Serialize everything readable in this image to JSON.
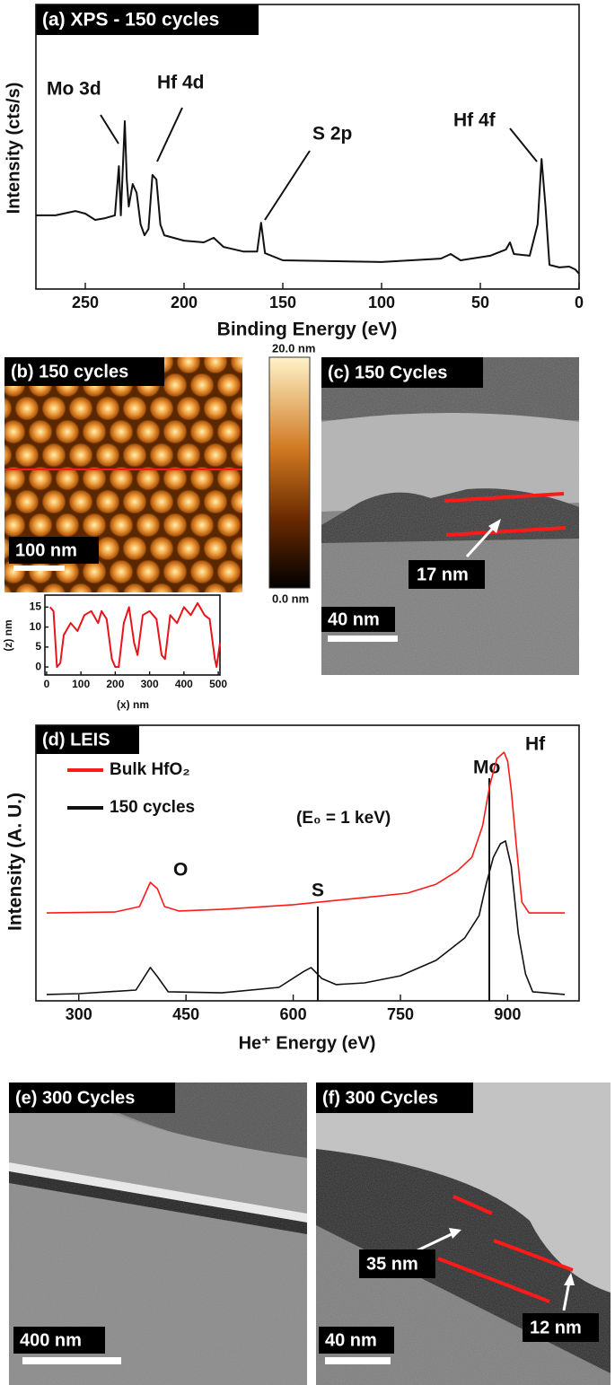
{
  "chart_data": [
    {
      "type": "line",
      "title": "(a) XPS - 150 cycles",
      "x_label": "Binding Energy (eV)",
      "y_label": "Intensity (cts/s)",
      "xlim": [
        275,
        0
      ],
      "ylim": [
        0,
        100
      ],
      "xticks": [
        250,
        200,
        150,
        100,
        50,
        0
      ],
      "annotations": [
        "Mo 3d",
        "Hf 4d",
        "S 2p",
        "Hf 4f"
      ],
      "series": [
        {
          "color": "#111111",
          "x": [
            275,
            265,
            255,
            250,
            245,
            240,
            235,
            233,
            232,
            230,
            229,
            228,
            226,
            224,
            222,
            220,
            218,
            216,
            214,
            212,
            210,
            200,
            190,
            185,
            180,
            170,
            163,
            161,
            159,
            150,
            100,
            70,
            65,
            60,
            45,
            37,
            35,
            33,
            25,
            21,
            19,
            17,
            15,
            10,
            5,
            2,
            0
          ],
          "values": [
            25.9,
            25.9,
            27.4,
            26.5,
            24.3,
            24.9,
            25.9,
            43.2,
            25.9,
            59.0,
            38.5,
            29.0,
            36.9,
            33.8,
            22.7,
            18.9,
            21.1,
            40.1,
            38.5,
            22.7,
            18.9,
            17.0,
            16.4,
            18.0,
            14.8,
            13.2,
            13.2,
            23.3,
            12.6,
            10.1,
            9.5,
            10.7,
            12.3,
            10.1,
            11.7,
            13.9,
            16.4,
            12.3,
            11.7,
            22.7,
            45.7,
            29.0,
            8.5,
            7.6,
            7.9,
            6.9,
            5.4
          ]
        }
      ]
    },
    {
      "type": "line",
      "x_label": "(x) nm",
      "y_label": "(z) nm",
      "xlim": [
        -5,
        505
      ],
      "ylim": [
        -2,
        18
      ],
      "xticks": [
        0,
        100,
        200,
        300,
        400,
        500
      ],
      "yticks": [
        0,
        5,
        10,
        15
      ],
      "series": [
        {
          "color": "#e8141b",
          "x": [
            10,
            20,
            30,
            40,
            50,
            70,
            90,
            110,
            130,
            150,
            160,
            175,
            190,
            200,
            210,
            225,
            240,
            255,
            265,
            280,
            300,
            320,
            335,
            345,
            360,
            380,
            400,
            420,
            440,
            460,
            475,
            490,
            495,
            505
          ],
          "values": [
            15,
            14,
            0,
            1,
            8,
            11,
            9,
            13,
            14,
            11,
            14,
            12,
            2,
            0,
            0,
            11,
            15,
            6,
            3,
            13,
            14,
            12,
            3,
            2,
            13,
            11,
            15,
            13,
            16,
            13,
            12,
            2,
            0,
            6
          ]
        }
      ]
    },
    {
      "type": "line",
      "title": "(d) LEIS",
      "x_label": "He⁺ Energy (eV)",
      "y_label": "Intensity (A. U.)",
      "xlim": [
        240,
        1000
      ],
      "ylim": [
        0,
        100
      ],
      "xticks": [
        300,
        450,
        600,
        750,
        900
      ],
      "legend": "upper left",
      "annotations": [
        "Hf",
        "Mo",
        "(E₀ = 1 keV)",
        "O",
        "S"
      ],
      "series": [
        {
          "name": "Bulk HfO₂",
          "color": "#ff1a1a",
          "x": [
            255,
            350,
            385,
            400,
            410,
            420,
            440,
            500,
            600,
            700,
            760,
            800,
            830,
            850,
            865,
            875,
            885,
            895,
            900,
            905,
            912,
            920,
            930,
            980
          ],
          "values": [
            31.9,
            32.2,
            34.2,
            43.0,
            40.7,
            34.2,
            32.6,
            33.2,
            34.9,
            37.5,
            39.1,
            42.3,
            47.2,
            52.1,
            63.5,
            78.2,
            87.9,
            90.2,
            87.0,
            76.5,
            57.0,
            35.8,
            31.9,
            31.9
          ]
        },
        {
          "name": "150 cycles",
          "color": "#111111",
          "x": [
            255,
            300,
            380,
            400,
            410,
            425,
            500,
            580,
            615,
            625,
            640,
            660,
            700,
            750,
            800,
            840,
            860,
            870,
            880,
            890,
            897,
            905,
            915,
            925,
            935,
            980
          ],
          "values": [
            2.3,
            2.6,
            3.9,
            12.1,
            8.8,
            3.3,
            2.9,
            4.9,
            10.7,
            12.1,
            8.1,
            5.9,
            6.5,
            9.1,
            14.7,
            22.8,
            30.9,
            42.3,
            52.1,
            57.0,
            58.0,
            48.9,
            24.4,
            9.8,
            3.3,
            2.3
          ]
        }
      ]
    }
  ],
  "panels": {
    "b": {
      "label": "(b) 150 cycles",
      "scale_bar": "100 nm",
      "colorbar_max": "20.0 nm",
      "colorbar_min": "0.0 nm"
    },
    "c": {
      "label": "(c) 150 Cycles",
      "thickness": "17 nm",
      "scale_bar": "40 nm"
    },
    "e": {
      "label": "(e) 300 Cycles",
      "scale_bar": "400 nm"
    },
    "f": {
      "label": "(f) 300 Cycles",
      "thicknesses": [
        "35 nm",
        "12 nm"
      ],
      "scale_bar": "40 nm"
    }
  }
}
